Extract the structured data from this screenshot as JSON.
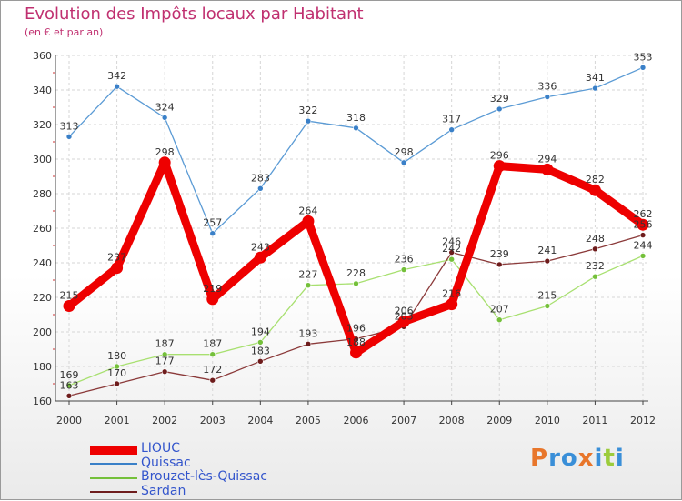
{
  "title": "Evolution des Impôts locaux par Habitant",
  "subtitle": "(en € et par an)",
  "logo": "Proxiti",
  "logo_colors": [
    "#e8762b",
    "#3a8fd8",
    "#3a8fd8",
    "#e8762b",
    "#3a8fd8",
    "#9ccc3c",
    "#3a8fd8"
  ],
  "chart_data": {
    "type": "line",
    "title": "Evolution des Impôts locaux par Habitant",
    "subtitle": "(en € et par an)",
    "xlabel": "",
    "ylabel": "",
    "x": [
      "2000",
      "2001",
      "2002",
      "2003",
      "2004",
      "2005",
      "2006",
      "2007",
      "2008",
      "2009",
      "2010",
      "2011",
      "2012"
    ],
    "ylim": [
      160,
      360
    ],
    "yticks": [
      160,
      180,
      200,
      220,
      240,
      260,
      280,
      300,
      320,
      340,
      360
    ],
    "grid": true,
    "legend_position": "bottom-left",
    "series": [
      {
        "name": "LIOUC",
        "color": "#ee0000",
        "emphasis": true,
        "values": [
          215,
          237,
          298,
          219,
          243,
          264,
          188,
          206,
          216,
          296,
          294,
          282,
          262
        ],
        "labels": [
          "215",
          "237",
          "298",
          "219",
          "243",
          "264",
          "188",
          "206",
          "216",
          "296",
          "294",
          "282",
          "262"
        ]
      },
      {
        "name": "Quissac",
        "color": "#5b9bd5",
        "point_color": "#3a80c8",
        "values": [
          313,
          342,
          324,
          257,
          283,
          322,
          318,
          298,
          317,
          329,
          336,
          341,
          353
        ],
        "labels": [
          "313",
          "342",
          "324",
          "257",
          "283",
          "322",
          "318",
          "298",
          "317",
          "329",
          "336",
          "341",
          "353"
        ]
      },
      {
        "name": "Brouzet-lès-Quissac",
        "color": "#a8e070",
        "point_color": "#74c03a",
        "values": [
          169,
          180,
          187,
          187,
          194,
          227,
          228,
          236,
          242,
          207,
          215,
          232,
          244
        ],
        "labels": [
          "169",
          "180",
          "187",
          "187",
          "194",
          "227",
          "228",
          "236",
          "242",
          "207",
          "215",
          "232",
          "244"
        ]
      },
      {
        "name": "Sardan",
        "color": "#8b3a3a",
        "point_color": "#6e1c1c",
        "values": [
          163,
          170,
          177,
          172,
          183,
          193,
          196,
          203,
          246,
          239,
          241,
          248,
          256
        ],
        "labels": [
          "163",
          "170",
          "177",
          "172",
          "183",
          "193",
          "196",
          "203",
          "246",
          "239",
          "241",
          "248",
          "256"
        ]
      }
    ]
  }
}
